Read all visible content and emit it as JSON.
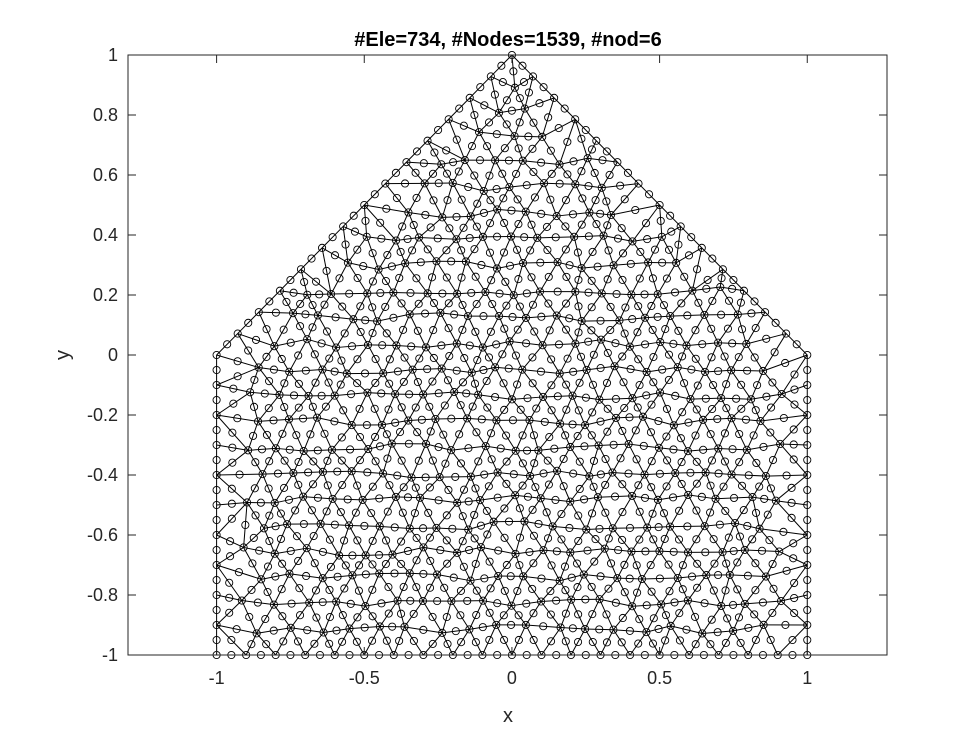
{
  "chart_data": {
    "type": "mesh",
    "title": "#Ele=734, #Nodes=1539, #nod=6",
    "xlabel": "x",
    "ylabel": "y",
    "xlim": [
      -1.3,
      1.27
    ],
    "ylim": [
      -1,
      1
    ],
    "xticks": [
      -1,
      -0.5,
      0,
      0.5,
      1
    ],
    "xtick_labels": [
      "-1",
      "-0.5",
      "0",
      "0.5",
      "1"
    ],
    "yticks": [
      -1,
      -0.8,
      -0.6,
      -0.4,
      -0.2,
      0,
      0.2,
      0.4,
      0.6,
      0.8,
      1
    ],
    "ytick_labels": [
      "-1",
      "-0.8",
      "-0.6",
      "-0.4",
      "-0.2",
      "0",
      "0.2",
      "0.4",
      "0.6",
      "0.8",
      "1"
    ],
    "grid": false,
    "box": true,
    "domain_boundary": [
      [
        -1,
        -1
      ],
      [
        1,
        -1
      ],
      [
        1,
        0
      ],
      [
        0,
        1
      ],
      [
        -1,
        0
      ]
    ],
    "element_count": 734,
    "node_count": 1539,
    "nodes_per_element": 6,
    "element_type": "quadratic triangle (6-node)",
    "colors": {
      "mesh": "#000000",
      "axes": "#262626",
      "background": "#ffffff"
    }
  }
}
